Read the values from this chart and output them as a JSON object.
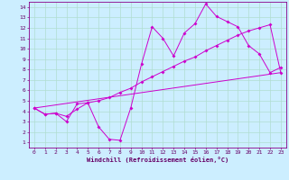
{
  "xlabel": "Windchill (Refroidissement éolien,°C)",
  "background_color": "#cceeff",
  "grid_color": "#b0ddd0",
  "line_color": "#cc00cc",
  "xlim": [
    -0.5,
    23.5
  ],
  "ylim": [
    0.5,
    14.5
  ],
  "xticks": [
    0,
    1,
    2,
    3,
    4,
    5,
    6,
    7,
    8,
    9,
    10,
    11,
    12,
    13,
    14,
    15,
    16,
    17,
    18,
    19,
    20,
    21,
    22,
    23
  ],
  "yticks": [
    1,
    2,
    3,
    4,
    5,
    6,
    7,
    8,
    9,
    10,
    11,
    12,
    13,
    14
  ],
  "line1_x": [
    0,
    1,
    2,
    3,
    4,
    5,
    6,
    7,
    8,
    9,
    10,
    11,
    12,
    13,
    14,
    15,
    16,
    17,
    18,
    19,
    20,
    21,
    22,
    23
  ],
  "line1_y": [
    4.3,
    3.7,
    3.8,
    3.0,
    4.7,
    4.8,
    2.5,
    1.3,
    1.2,
    4.3,
    8.5,
    12.1,
    11.0,
    9.3,
    11.5,
    12.4,
    14.3,
    13.1,
    12.6,
    12.1,
    10.3,
    9.5,
    7.7,
    8.2
  ],
  "line2_x": [
    0,
    1,
    2,
    3,
    4,
    5,
    6,
    7,
    8,
    9,
    10,
    11,
    12,
    13,
    14,
    15,
    16,
    17,
    18,
    19,
    20,
    21,
    22,
    23
  ],
  "line2_y": [
    4.3,
    3.7,
    3.8,
    3.5,
    4.2,
    4.8,
    5.0,
    5.3,
    5.8,
    6.2,
    6.8,
    7.3,
    7.8,
    8.3,
    8.8,
    9.2,
    9.8,
    10.3,
    10.8,
    11.3,
    11.7,
    12.0,
    12.3,
    7.7
  ],
  "line3_x": [
    0,
    23
  ],
  "line3_y": [
    4.3,
    7.7
  ],
  "tick_fontsize": 4.5,
  "xlabel_fontsize": 5.0,
  "marker_size": 2.0,
  "line_width": 0.7
}
